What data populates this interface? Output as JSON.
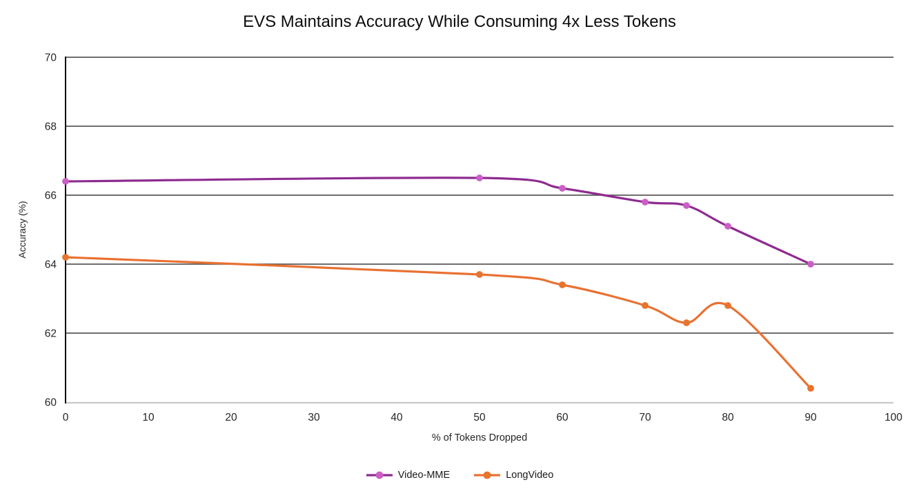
{
  "chart_data": {
    "type": "line",
    "title": "EVS Maintains Accuracy While Consuming 4x Less Tokens",
    "xlabel": "% of Tokens Dropped",
    "ylabel": "Accuracy (%)",
    "xlim": [
      0,
      100
    ],
    "ylim": [
      60,
      70
    ],
    "x_ticks": [
      0,
      10,
      20,
      30,
      40,
      50,
      60,
      70,
      80,
      90,
      100
    ],
    "y_ticks": [
      60,
      62,
      64,
      66,
      68,
      70
    ],
    "grid": "horizontal-major",
    "smooth_lines": true,
    "legend_position": "bottom-center",
    "series": [
      {
        "name": "Video-MME",
        "x": [
          0,
          50,
          60,
          70,
          75,
          80,
          90
        ],
        "y": [
          66.4,
          66.5,
          66.2,
          65.8,
          65.7,
          65.1,
          64.0
        ],
        "line_color": "#8e2b90",
        "marker_color": "#cb5fc7"
      },
      {
        "name": "LongVideo",
        "x": [
          0,
          50,
          60,
          70,
          75,
          80,
          90
        ],
        "y": [
          64.2,
          63.7,
          63.4,
          62.8,
          62.3,
          62.8,
          60.4
        ],
        "line_color": "#e97132",
        "marker_color": "#e8732b"
      }
    ],
    "colors": {
      "gridline": "#595959",
      "x_axis_line": "#c8c8c8",
      "y_axis_line": "#000000",
      "tick_text": "#262626",
      "title_text": "#0d0d0d"
    }
  }
}
